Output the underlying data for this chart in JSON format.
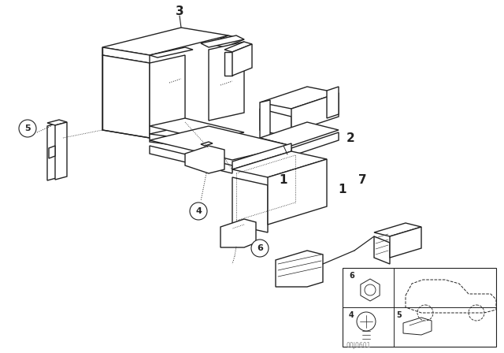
{
  "background_color": "#ffffff",
  "line_color": "#222222",
  "fig_width": 6.4,
  "fig_height": 4.48,
  "dpi": 100,
  "watermark": "00J0601"
}
